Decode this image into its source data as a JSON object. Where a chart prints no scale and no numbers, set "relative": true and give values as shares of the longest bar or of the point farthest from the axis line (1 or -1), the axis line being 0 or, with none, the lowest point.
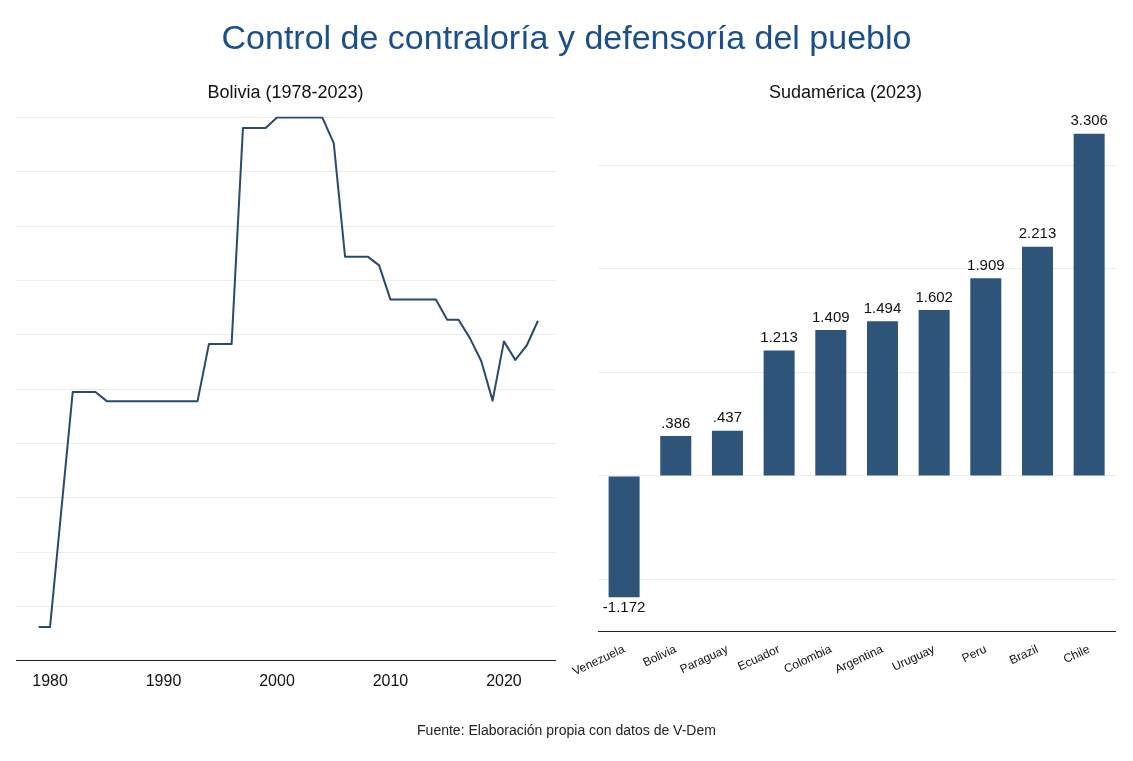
{
  "chart_data": [
    {
      "type": "line",
      "title": "Control de contraloría y defensoría del pueblo",
      "subtitle": "Bolivia (1978-2023)",
      "relative": true,
      "grid": "y",
      "tick_labels": "x",
      "xlim": [
        1977,
        2024.5
      ],
      "xticks": [
        1980,
        1990,
        2000,
        2010,
        2020
      ],
      "x": [
        1979,
        1980,
        1982,
        1984,
        1985,
        1993,
        1994,
        1996,
        1997,
        1999,
        2000,
        2004,
        2005,
        2006,
        2008,
        2009,
        2010,
        2014,
        2015,
        2016,
        2017,
        2018,
        2019,
        2020,
        2021,
        2022,
        2023
      ],
      "series": [
        {
          "color": "#2b4a6b",
          "values": [
            0.062,
            0.062,
            0.495,
            0.495,
            0.478,
            0.478,
            0.583,
            0.583,
            0.981,
            0.981,
            1,
            1,
            0.953,
            0.744,
            0.744,
            0.728,
            0.665,
            0.665,
            0.628,
            0.628,
            0.594,
            0.552,
            0.479,
            0.588,
            0.554,
            0.58,
            0.626
          ]
        }
      ]
    },
    {
      "type": "bar",
      "title": "Sudamérica (2023)",
      "grid": "y",
      "tick_labels": "x",
      "yticks": [
        {
          "value": -1,
          "label": null
        },
        {
          "value": 0,
          "label": null
        },
        {
          "value": 1,
          "label": null
        },
        {
          "value": 2,
          "label": null
        },
        {
          "value": 3,
          "label": null
        }
      ],
      "categories": [
        "Venezuela",
        "Bolivia",
        "Paraguay",
        "Ecuador",
        "Colombia",
        "Argentina",
        "Uruguay",
        "Peru",
        "Brazil",
        "Chile"
      ],
      "series": [
        {
          "color": "#2e5579",
          "values": [
            -1.172,
            0.386,
            0.437,
            1.213,
            1.409,
            1.494,
            1.602,
            1.909,
            2.213,
            3.306
          ],
          "value_labels": [
            "-1.172",
            ".386",
            ".437",
            "1.213",
            "1.409",
            "1.494",
            "1.602",
            "1.909",
            "2.213",
            "3.306"
          ]
        }
      ],
      "annotations": [
        "Fuente: Elaboración propia con datos de V-Dem"
      ]
    }
  ]
}
